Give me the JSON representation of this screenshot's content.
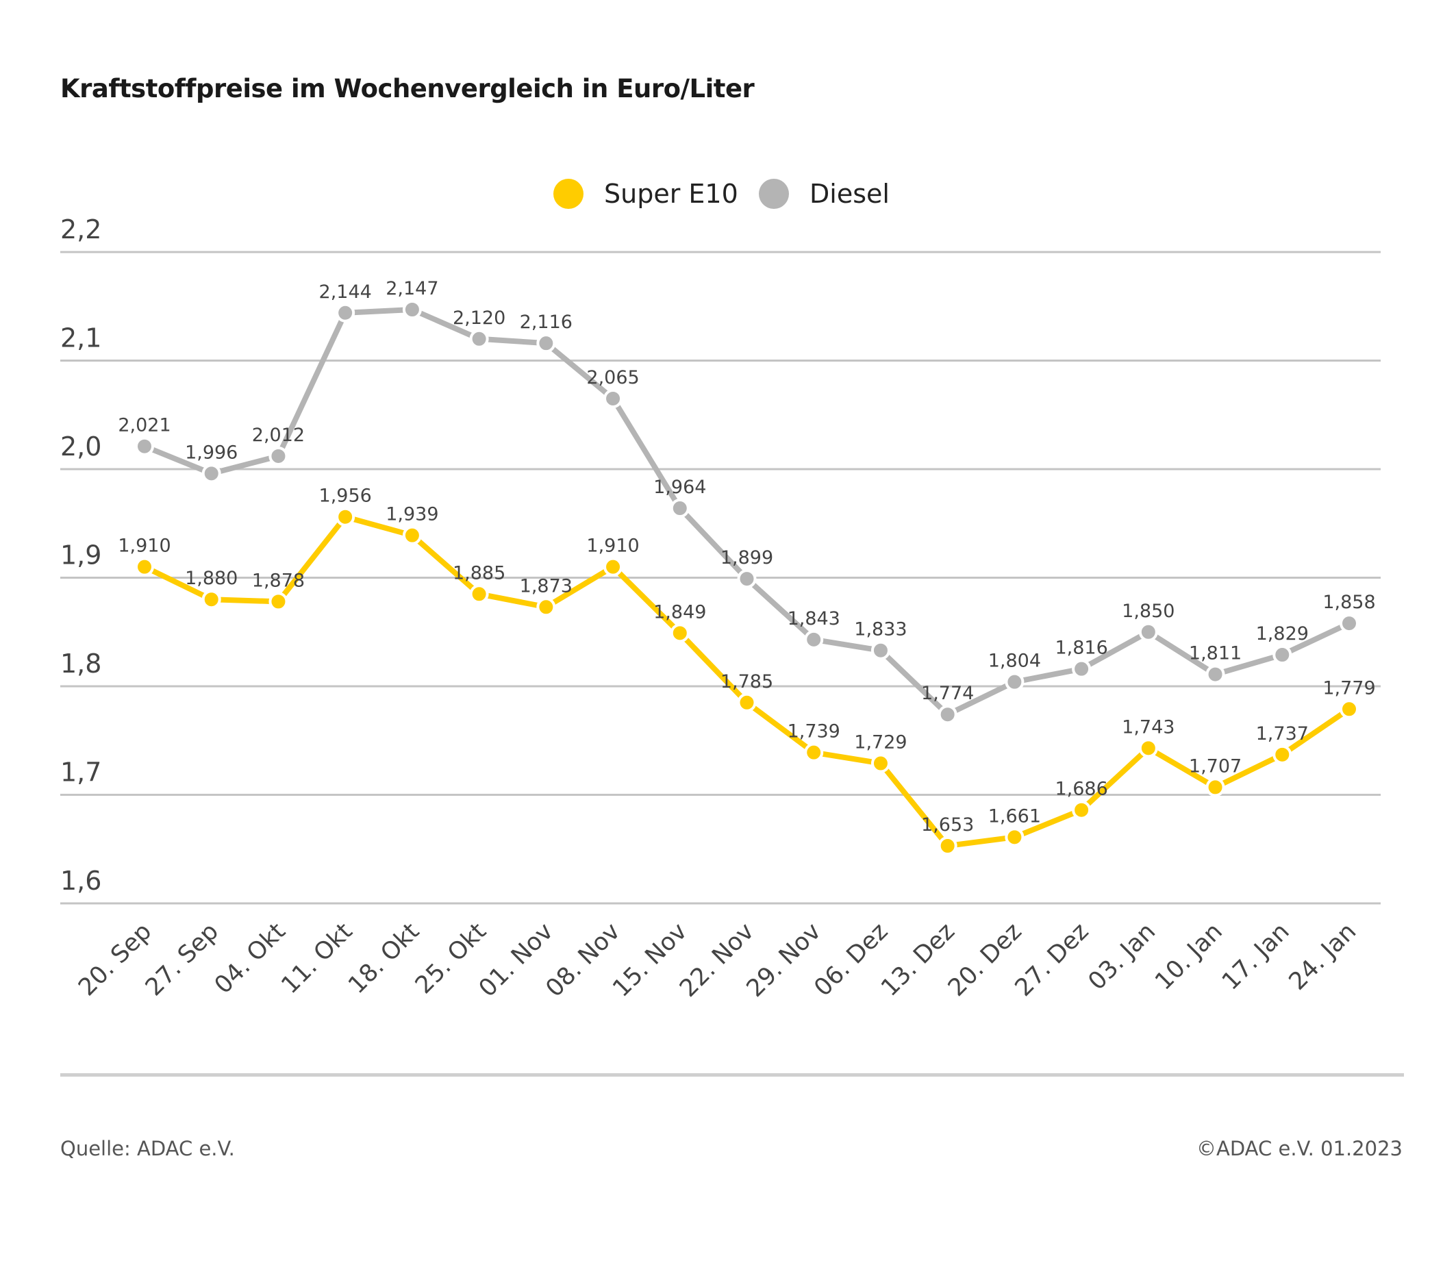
{
  "chart_data": {
    "type": "line",
    "title": "Kraftstoffpreise im Wochenvergleich in Euro/Liter",
    "categories": [
      "20. Sep",
      "27. Sep",
      "04. Okt",
      "11. Okt",
      "18. Okt",
      "25. Okt",
      "01. Nov",
      "08. Nov",
      "15. Nov",
      "22. Nov",
      "29. Nov",
      "06. Dez",
      "13. Dez",
      "20. Dez",
      "27. Dez",
      "03. Jan",
      "10. Jan",
      "17. Jan",
      "24. Jan"
    ],
    "series": [
      {
        "name": "Super E10",
        "color": "#FFCC00",
        "values": [
          1.91,
          1.88,
          1.878,
          1.956,
          1.939,
          1.885,
          1.873,
          1.91,
          1.849,
          1.785,
          1.739,
          1.729,
          1.653,
          1.661,
          1.686,
          1.743,
          1.707,
          1.737,
          1.779
        ]
      },
      {
        "name": "Diesel",
        "color": "#B4B4B4",
        "values": [
          2.021,
          1.996,
          2.012,
          2.144,
          2.147,
          2.12,
          2.116,
          2.065,
          1.964,
          1.899,
          1.843,
          1.833,
          1.774,
          1.804,
          1.816,
          1.85,
          1.811,
          1.829,
          1.858
        ]
      }
    ],
    "ylim": [
      1.6,
      2.2
    ],
    "yticks": [
      "1,6",
      "1,7",
      "1,8",
      "1,9",
      "2,0",
      "2,1",
      "2,2"
    ],
    "grid": true,
    "legend_position": "top-center",
    "data_labels": true,
    "decimal_separator": ","
  },
  "footer": {
    "source": "Quelle: ADAC e.V.",
    "copyright": "©ADAC e.V. 01.2023"
  }
}
